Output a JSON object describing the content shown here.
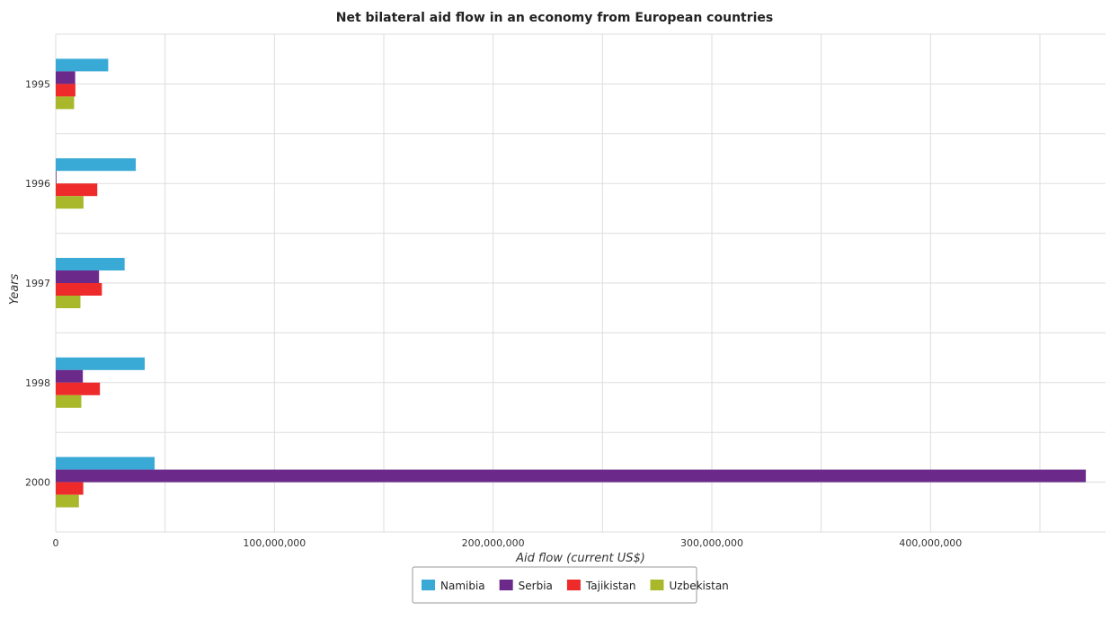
{
  "chart_data": {
    "type": "bar",
    "orientation": "horizontal",
    "title": "Net bilateral aid flow in an economy from European countries",
    "xlabel": "Aid flow (current US$)",
    "ylabel": "Years",
    "categories": [
      "1995",
      "1996",
      "1997",
      "1998",
      "2000"
    ],
    "xlim": [
      0,
      480000000
    ],
    "xticks": [
      0,
      100000000,
      200000000,
      300000000,
      400000000
    ],
    "xtick_labels": [
      "0",
      "100,000,000",
      "200,000,000",
      "300,000,000",
      "400,000,000"
    ],
    "grid": true,
    "legend_position": "bottom-center",
    "series": [
      {
        "name": "Namibia",
        "color": "#39a9d6",
        "values": [
          24000000,
          36600000,
          31500000,
          40700000,
          45200000
        ]
      },
      {
        "name": "Serbia",
        "color": "#6b2a8a",
        "values": [
          8900000,
          100000,
          19800000,
          12400000,
          471000000
        ]
      },
      {
        "name": "Tajikistan",
        "color": "#ee2a2a",
        "values": [
          9000000,
          19000000,
          21100000,
          20200000,
          12600000
        ]
      },
      {
        "name": "Uzbekistan",
        "color": "#a8b82a",
        "values": [
          8400000,
          12700000,
          11300000,
          11700000,
          10600000
        ]
      }
    ]
  }
}
